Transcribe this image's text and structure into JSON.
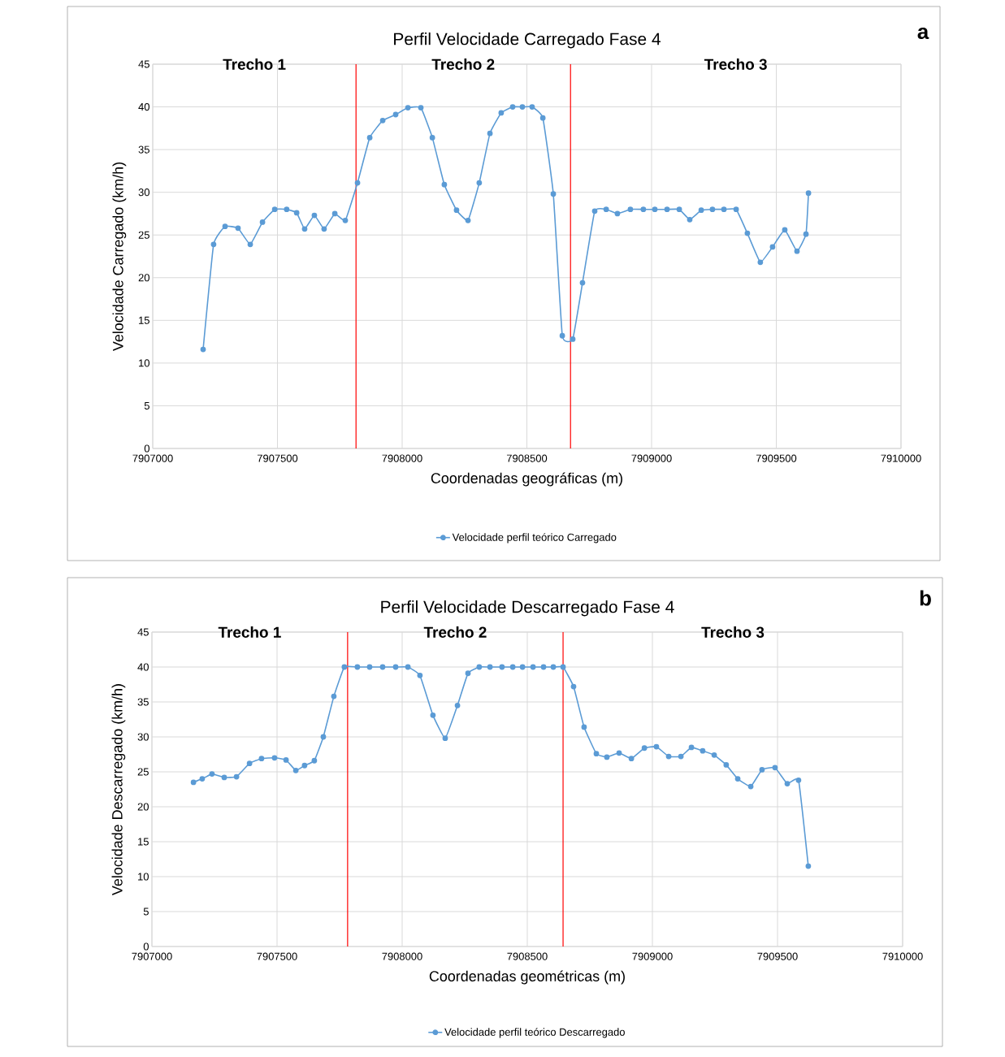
{
  "chart_data": [
    {
      "type": "line",
      "title": "Perfil Velocidade Carregado Fase 4",
      "xlabel": "Coordenadas geográficas (m)",
      "ylabel": "Velocidade Carregado (km/h)",
      "xlim": [
        7907000,
        7910000
      ],
      "ylim": [
        0,
        45
      ],
      "xticks": [
        7907000,
        7907500,
        7908000,
        7908500,
        7909000,
        7909500,
        7910000
      ],
      "yticks": [
        0,
        5,
        10,
        15,
        20,
        25,
        30,
        35,
        40,
        45
      ],
      "grid": true,
      "legend": "bottom",
      "marker": "circle",
      "line_style": "solid",
      "ref_lines": [
        {
          "axis": "x",
          "value": 7907815,
          "color": "#ff0000"
        },
        {
          "axis": "x",
          "value": 7908675,
          "color": "#ff0000"
        }
      ],
      "annotations": [
        "a",
        "Trecho 1",
        "Trecho 2",
        "Trecho 3"
      ],
      "series": [
        {
          "name": "Velocidade perfil teórico Carregado",
          "color": "#5b9bd5",
          "x": [
            7907202,
            7907244,
            7907290,
            7907342,
            7907391,
            7907440,
            7907489,
            7907537,
            7907577,
            7907609,
            7907648,
            7907687,
            7907730,
            7907772,
            7907821,
            7907870,
            7907922,
            7907974,
            7908023,
            7908075,
            7908121,
            7908169,
            7908218,
            7908264,
            7908309,
            7908352,
            7908397,
            7908443,
            7908482,
            7908521,
            7908564,
            7908606,
            7908642,
            7908684,
            7908723,
            7908772,
            7908818,
            7908863,
            7908915,
            7908967,
            7909013,
            7909062,
            7909111,
            7909153,
            7909199,
            7909244,
            7909290,
            7909339,
            7909384,
            7909436,
            7909485,
            7909534,
            7909583,
            7909619,
            7909629
          ],
          "values": [
            11.6,
            23.9,
            26.0,
            25.8,
            23.9,
            26.5,
            28.0,
            28.0,
            27.6,
            25.7,
            27.3,
            25.7,
            27.5,
            26.7,
            31.1,
            36.4,
            38.4,
            39.1,
            39.9,
            39.9,
            36.4,
            30.9,
            27.9,
            26.7,
            31.1,
            36.9,
            39.3,
            40.0,
            40.0,
            40.0,
            38.7,
            29.8,
            13.2,
            12.8,
            19.4,
            27.8,
            28.0,
            27.5,
            28.0,
            28.0,
            28.0,
            28.0,
            28.0,
            26.8,
            27.9,
            28.0,
            28.0,
            28.0,
            25.2,
            21.8,
            23.6,
            25.6,
            23.1,
            25.1,
            29.9
          ]
        }
      ]
    },
    {
      "type": "line",
      "title": "Perfil Velocidade Descarregado  Fase 4",
      "xlabel": "Coordenadas geométricas (m)",
      "ylabel": "Velocidade Descarregado (km/h)",
      "xlim": [
        7907000,
        7910000
      ],
      "ylim": [
        0,
        45
      ],
      "xticks": [
        7907000,
        7907500,
        7908000,
        7908500,
        7909000,
        7909500,
        7910000
      ],
      "yticks": [
        0,
        5,
        10,
        15,
        20,
        25,
        30,
        35,
        40,
        45
      ],
      "grid": true,
      "legend": "bottom",
      "marker": "circle",
      "line_style": "solid",
      "ref_lines": [
        {
          "axis": "x",
          "value": 7907782,
          "color": "#ff0000"
        },
        {
          "axis": "x",
          "value": 7908643,
          "color": "#ff0000"
        }
      ],
      "annotations": [
        "b",
        "Trecho 1",
        "Trecho 2",
        "Trecho 3"
      ],
      "series": [
        {
          "name": "Velocidade perfil teórico Descarregado",
          "color": "#5b9bd5",
          "x": [
            7907166,
            7907201,
            7907240,
            7907289,
            7907338,
            7907390,
            7907438,
            7907490,
            7907536,
            7907575,
            7907610,
            7907649,
            7907685,
            7907727,
            7907769,
            7907821,
            7907870,
            7907922,
            7907974,
            7908023,
            7908071,
            7908123,
            7908172,
            7908221,
            7908263,
            7908308,
            7908351,
            7908399,
            7908442,
            7908481,
            7908523,
            7908565,
            7908604,
            7908643,
            7908685,
            7908727,
            7908776,
            7908818,
            7908867,
            7908916,
            7908968,
            7909016,
            7909065,
            7909114,
            7909156,
            7909201,
            7909247,
            7909295,
            7909341,
            7909393,
            7909438,
            7909490,
            7909539,
            7909584,
            7909623
          ],
          "values": [
            23.5,
            24.0,
            24.7,
            24.2,
            24.3,
            26.2,
            26.9,
            27.0,
            26.7,
            25.2,
            25.9,
            26.6,
            30.0,
            35.8,
            40.0,
            40.0,
            40.0,
            40.0,
            40.0,
            40.0,
            38.8,
            33.1,
            29.8,
            34.5,
            39.1,
            40.0,
            40.0,
            40.0,
            40.0,
            40.0,
            40.0,
            40.0,
            40.0,
            40.0,
            37.2,
            31.4,
            27.6,
            27.1,
            27.7,
            26.9,
            28.4,
            28.6,
            27.2,
            27.2,
            28.5,
            28.0,
            27.4,
            26.0,
            24.0,
            22.9,
            25.3,
            25.6,
            23.3,
            23.8,
            11.5
          ]
        }
      ]
    }
  ]
}
